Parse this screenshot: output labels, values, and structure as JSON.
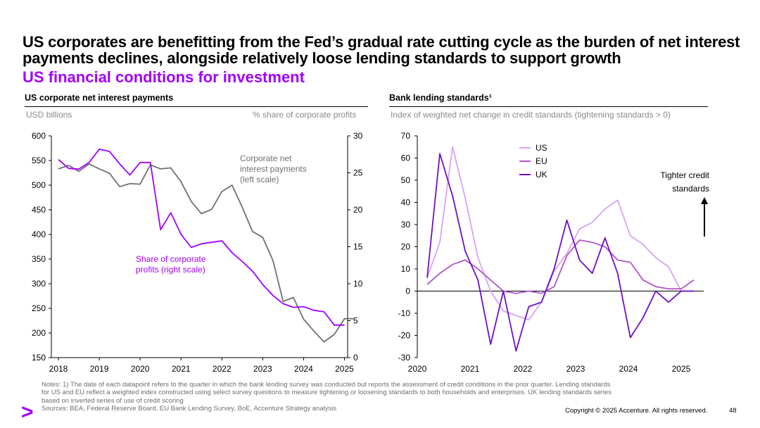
{
  "header": {
    "title": "US corporates are benefitting from the Fed’s gradual rate cutting cycle as the burden of net interest payments declines, alongside relatively loose lending standards to support growth",
    "subtitle": "US financial conditions for investment"
  },
  "left_panel": {
    "title": "US corporate net interest payments",
    "left_unit": "USD billions",
    "right_unit": "% share of corporate profits"
  },
  "right_panel": {
    "title": "Bank lending standards¹",
    "unit": "Index of weighted net change in credit standards (tightening standards > 0)"
  },
  "chart_data": [
    {
      "type": "line",
      "title": "US corporate net interest payments",
      "x_ticks": [
        2018,
        2019,
        2020,
        2021,
        2022,
        2023,
        2024,
        2025
      ],
      "y_left": {
        "label": "USD billions",
        "lim": [
          150,
          600
        ],
        "ticks": [
          150,
          200,
          250,
          300,
          350,
          400,
          450,
          500,
          550,
          600
        ]
      },
      "y_right": {
        "label": "% share of corporate profits",
        "lim": [
          0,
          30
        ],
        "ticks": [
          0,
          5,
          10,
          15,
          20,
          25,
          30
        ]
      },
      "series": [
        {
          "name": "Corporate net interest payments (left scale)",
          "label_lines": [
            "Corporate net",
            "interest payments",
            "(left scale)"
          ],
          "axis": "left",
          "color": "#707070",
          "x": [
            2018.0,
            2018.25,
            2018.5,
            2018.75,
            2019.0,
            2019.25,
            2019.5,
            2019.75,
            2020.0,
            2020.25,
            2020.5,
            2020.75,
            2021.0,
            2021.25,
            2021.5,
            2021.75,
            2022.0,
            2022.25,
            2022.5,
            2022.75,
            2023.0,
            2023.25,
            2023.5,
            2023.75,
            2024.0,
            2024.25,
            2024.5,
            2024.75,
            2025.0,
            2025.25
          ],
          "values": [
            533,
            540,
            528,
            543,
            533,
            524,
            497,
            503,
            502,
            541,
            533,
            535,
            507,
            467,
            442,
            451,
            487,
            500,
            455,
            406,
            394,
            347,
            264,
            272,
            228,
            204,
            182,
            197,
            229,
            229
          ]
        },
        {
          "name": "Share of corporate profits (right scale)",
          "label_lines": [
            "Share of corporate",
            "profits (right scale)"
          ],
          "axis": "right",
          "color": "#a100ff",
          "x": [
            2018.0,
            2018.25,
            2018.5,
            2018.75,
            2019.0,
            2019.25,
            2019.5,
            2019.75,
            2020.0,
            2020.25,
            2020.5,
            2020.75,
            2021.0,
            2021.25,
            2021.5,
            2021.75,
            2022.0,
            2022.25,
            2022.5,
            2022.75,
            2023.0,
            2023.25,
            2023.5,
            2023.75,
            2024.0,
            2024.25,
            2024.5,
            2024.75,
            2025.0
          ],
          "values": [
            26.8,
            25.6,
            25.5,
            26.4,
            28.2,
            27.9,
            26.2,
            24.7,
            26.4,
            26.4,
            17.3,
            19.6,
            16.7,
            14.9,
            15.4,
            15.6,
            15.8,
            14.2,
            13.0,
            11.7,
            9.9,
            8.4,
            7.3,
            6.8,
            6.9,
            6.4,
            6.2,
            4.4,
            4.4
          ]
        }
      ]
    },
    {
      "type": "line",
      "title": "Bank lending standards¹",
      "ylabel": "Index of weighted net change in credit standards (tightening standards > 0)",
      "x_ticks": [
        2020,
        2021,
        2022,
        2023,
        2024,
        2025
      ],
      "ylim": [
        -30,
        70
      ],
      "y_ticks": [
        -30,
        -20,
        -10,
        0,
        10,
        20,
        30,
        40,
        50,
        60,
        70
      ],
      "legend": "top-left",
      "annotation": {
        "lines": [
          "Tighter credit",
          "standards"
        ],
        "arrow": "up"
      },
      "series": [
        {
          "name": "US",
          "color": "#d9a3f5",
          "x": [
            2020.0,
            2020.25,
            2020.5,
            2020.75,
            2021.0,
            2021.25,
            2021.5,
            2021.75,
            2022.0,
            2022.25,
            2022.5,
            2022.75,
            2023.0,
            2023.25,
            2023.5,
            2023.75,
            2024.0,
            2024.25,
            2024.5,
            2024.75,
            2025.0,
            2025.25
          ],
          "values": [
            6,
            22,
            65,
            42,
            15,
            0,
            -9,
            -11,
            -13,
            -5,
            9,
            17,
            28,
            31,
            37,
            41,
            25,
            21,
            15,
            11,
            0,
            0
          ]
        },
        {
          "name": "EU",
          "color": "#b055c8",
          "x": [
            2020.0,
            2020.25,
            2020.5,
            2020.75,
            2021.0,
            2021.25,
            2021.5,
            2021.75,
            2022.0,
            2022.25,
            2022.5,
            2022.75,
            2023.0,
            2023.25,
            2023.5,
            2023.75,
            2024.0,
            2024.25,
            2024.5,
            2024.75,
            2025.0,
            2025.25
          ],
          "values": [
            3,
            8,
            12,
            14,
            10,
            5,
            0,
            -1,
            0,
            -1,
            2,
            16,
            23,
            22,
            20,
            14,
            13,
            5,
            2,
            1,
            1,
            5
          ]
        },
        {
          "name": "UK",
          "color": "#6e0fc8",
          "x": [
            2020.0,
            2020.25,
            2020.5,
            2020.75,
            2021.0,
            2021.25,
            2021.5,
            2021.75,
            2022.0,
            2022.25,
            2022.5,
            2022.75,
            2023.0,
            2023.25,
            2023.5,
            2023.75,
            2024.0,
            2024.25,
            2024.5,
            2024.75,
            2025.0,
            2025.25
          ],
          "values": [
            6,
            62,
            43,
            18,
            5,
            -24,
            0,
            -27,
            -7,
            -5,
            10,
            32,
            14,
            8,
            24,
            8,
            -21,
            -12,
            0,
            -5,
            0,
            0
          ]
        }
      ]
    }
  ],
  "footer": {
    "notes": "Notes: 1) The date of each datapoint refers to the quarter in which the bank lending survey was conducted but reports the assessment of credit conditions in the prior quarter. Lending standards for US and EU reflect a weighted index constructed using select survey questions to measure tightening or loosening standards to both households and enterprises. UK lending standards series based on inverted series of use of credit scoring",
    "sources": "Sources: BEA, Federal Reserve Board, EU Bank Lending Survey, BoE, Accenture Strategy analysis",
    "copyright": "Copyright © 2025 Accenture. All rights reserved.",
    "page_number": "48",
    "logo_glyph": ">"
  }
}
